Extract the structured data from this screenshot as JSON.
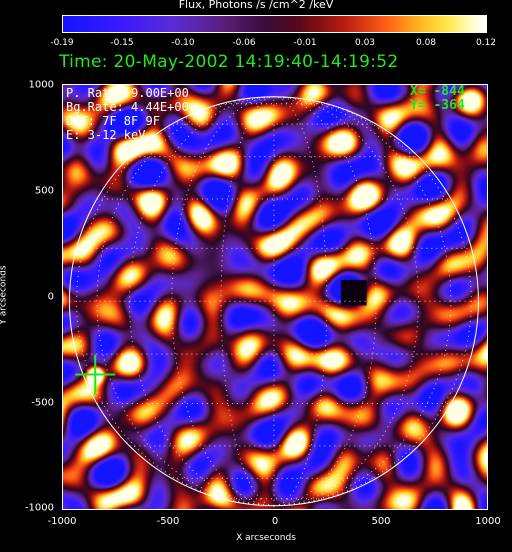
{
  "colorbar": {
    "title": "Flux, Photons /s /cm^2 /keV",
    "ticks": [
      "-0.19",
      "-0.15",
      "-0.10",
      "-0.06",
      "-0.01",
      "0.03",
      "0.08",
      "0.12"
    ]
  },
  "time_label": "Time: 20-May-2002 14:19:40-14:19:52",
  "info": {
    "p_rate": "P. Rate:  9.00E+00",
    "bg_rate": "Bg.Rate:  4.44E+00",
    "det": "DET: 7F 8F 9F",
    "energy": "E: 3-12 keV"
  },
  "cursor": {
    "x_label": "X= -844",
    "y_label": "Y= -364",
    "x": -844,
    "y": -364
  },
  "axes": {
    "xlabel": "X arcseconds",
    "ylabel": "Y arcseconds",
    "xticks": [
      "-1000",
      "-500",
      "0",
      "500",
      "1000"
    ],
    "yticks": [
      "1000",
      "500",
      "0",
      "-500",
      "-1000"
    ],
    "xlim": [
      -1000,
      1000
    ],
    "ylim": [
      -1000,
      1000
    ]
  },
  "colors": {
    "time": "#20e820",
    "coords": "#20e820",
    "limb": "#ffffff"
  }
}
